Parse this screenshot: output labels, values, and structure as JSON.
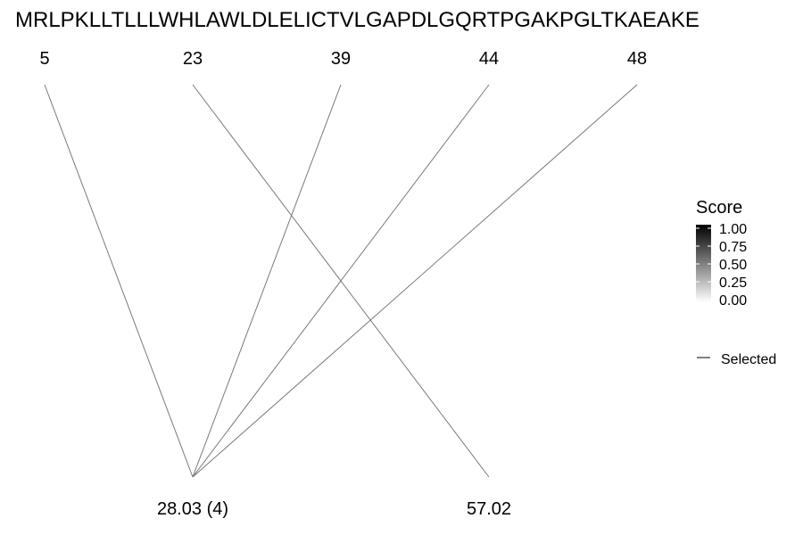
{
  "chart_data": {
    "type": "line",
    "title": "MRLPKLLTLLLWHLAWLDLELICTVLGAPDLGQRTPGAKPGLTKAEAKE",
    "positions": [
      "5",
      "23",
      "39",
      "44",
      "48"
    ],
    "masses": [
      {
        "value": 28.03,
        "label": "28.03 (4)"
      },
      {
        "value": 57.02,
        "label": "57.02"
      }
    ],
    "links": [
      {
        "position": "5",
        "mass": "28.03 (4)"
      },
      {
        "position": "23",
        "mass": "57.02"
      },
      {
        "position": "39",
        "mass": "28.03 (4)"
      },
      {
        "position": "44",
        "mass": "28.03 (4)"
      },
      {
        "position": "48",
        "mass": "28.03 (4)"
      }
    ],
    "legend": {
      "score_title": "Score",
      "score_ticks": [
        "1.00",
        "0.75",
        "0.50",
        "0.25",
        "0.00"
      ],
      "score_range": [
        0,
        1
      ],
      "line_item_label": "Selected"
    },
    "colors": {
      "link_line": "#7a7a7a",
      "gradient_high": "#000000",
      "gradient_low": "#ffffff",
      "text": "#000000"
    }
  }
}
